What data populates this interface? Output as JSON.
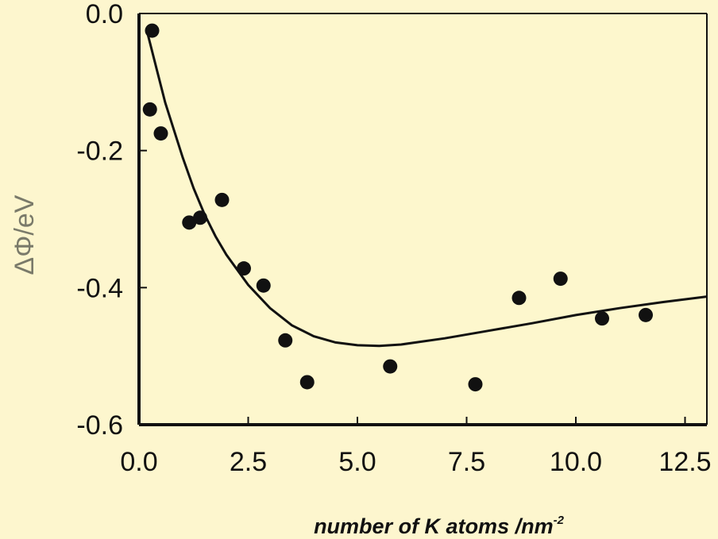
{
  "chart_data": {
    "type": "scatter",
    "title": "",
    "xlabel": {
      "main": "number of K atoms /nm",
      "superscript": "-2"
    },
    "ylabel": "ΔΦ/eV",
    "xlim": [
      0.0,
      13.0
    ],
    "ylim": [
      -0.6,
      0.0
    ],
    "xticks": [
      "0.0",
      "2.5",
      "5.0",
      "7.5",
      "10.0",
      "12.5"
    ],
    "yticks": [
      "0.0",
      "-0.2",
      "-0.4",
      "-0.6"
    ],
    "grid": false,
    "legend": "none",
    "colors": {
      "background": "#fdf6ce",
      "plot_area": "#fdf7cd",
      "axis": "#111111",
      "points": "#111111",
      "fit_line": "#111111"
    },
    "series": [
      {
        "type": "scatter",
        "x": [
          0.25,
          0.3,
          0.5,
          1.15,
          1.4,
          1.9,
          2.4,
          2.85,
          3.35,
          3.85,
          5.75,
          7.7,
          8.7,
          9.65,
          10.6,
          11.6
        ],
        "y": [
          -0.14,
          -0.025,
          -0.175,
          -0.305,
          -0.298,
          -0.272,
          -0.372,
          -0.397,
          -0.477,
          -0.538,
          -0.515,
          -0.541,
          -0.415,
          -0.387,
          -0.445,
          -0.44
        ]
      },
      {
        "type": "line",
        "x": [
          0.2,
          0.4,
          0.6,
          0.8,
          1.0,
          1.25,
          1.5,
          1.75,
          2.0,
          2.5,
          3.0,
          3.5,
          4.0,
          4.5,
          5.0,
          5.5,
          6.0,
          7.0,
          8.0,
          9.0,
          10.0,
          11.0,
          12.0,
          13.0
        ],
        "y": [
          -0.03,
          -0.08,
          -0.13,
          -0.17,
          -0.21,
          -0.255,
          -0.293,
          -0.325,
          -0.352,
          -0.396,
          -0.43,
          -0.455,
          -0.471,
          -0.48,
          -0.484,
          -0.485,
          -0.483,
          -0.474,
          -0.463,
          -0.452,
          -0.44,
          -0.43,
          -0.421,
          -0.413
        ]
      }
    ]
  }
}
